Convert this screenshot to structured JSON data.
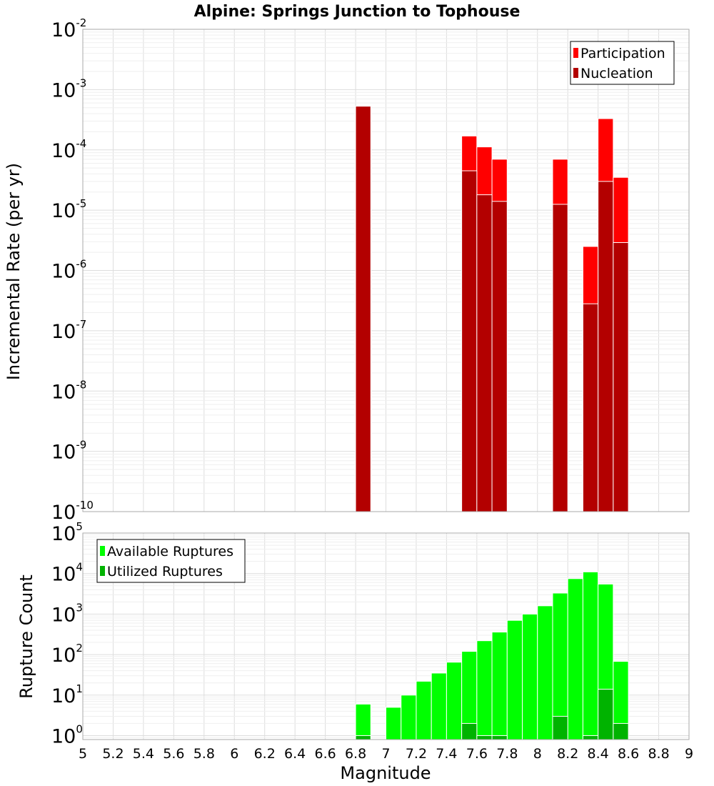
{
  "chart_data": [
    {
      "type": "bar",
      "title": "Alpine: Springs Junction to Tophouse",
      "ylabel": "Incremental Rate (per yr)",
      "y_scale": "log",
      "ylim": [
        1e-10,
        0.01
      ],
      "xlim": [
        5,
        9
      ],
      "grid": true,
      "legend_position": "top-right",
      "series": [
        {
          "name": "Participation",
          "color": "#ff0000",
          "x": [
            6.85,
            7.55,
            7.65,
            7.75,
            8.15,
            8.35,
            8.45,
            8.55
          ],
          "values": [
            0.00053,
            0.00017,
            0.000112,
            7e-05,
            7e-05,
            2.5e-06,
            0.00033,
            3.5e-05
          ]
        },
        {
          "name": "Nucleation",
          "color": "#b30000",
          "x": [
            6.85,
            7.55,
            7.65,
            7.75,
            8.15,
            8.35,
            8.45,
            8.55
          ],
          "values": [
            0.00053,
            4.5e-05,
            1.8e-05,
            1.4e-05,
            1.25e-05,
            2.8e-07,
            3e-05,
            2.9e-06
          ]
        }
      ]
    },
    {
      "type": "bar",
      "xlabel": "Magnitude",
      "ylabel": "Rupture Count",
      "y_scale": "log",
      "ylim": [
        0.8,
        100000
      ],
      "xlim": [
        5,
        9
      ],
      "grid": true,
      "legend_position": "top-left",
      "x_ticks": [
        "5",
        "5.2",
        "5.4",
        "5.6",
        "5.8",
        "6",
        "6.2",
        "6.4",
        "6.6",
        "6.8",
        "7",
        "7.2",
        "7.4",
        "7.6",
        "7.8",
        "8",
        "8.2",
        "8.4",
        "8.6",
        "8.8",
        "9"
      ],
      "series": [
        {
          "name": "Available Ruptures",
          "color": "#00ff00",
          "x": [
            6.85,
            7.05,
            7.15,
            7.25,
            7.35,
            7.45,
            7.55,
            7.65,
            7.75,
            7.85,
            7.95,
            8.05,
            8.15,
            8.25,
            8.35,
            8.45,
            8.55
          ],
          "values": [
            6,
            5,
            10,
            22,
            35,
            65,
            120,
            220,
            360,
            700,
            1000,
            1600,
            3300,
            7500,
            11000,
            5500,
            68
          ]
        },
        {
          "name": "Utilized Ruptures",
          "color": "#00b300",
          "x": [
            6.85,
            7.55,
            7.65,
            7.75,
            8.15,
            8.35,
            8.45,
            8.55
          ],
          "values": [
            1,
            2,
            1,
            1,
            3,
            1,
            14,
            2
          ]
        }
      ]
    }
  ]
}
